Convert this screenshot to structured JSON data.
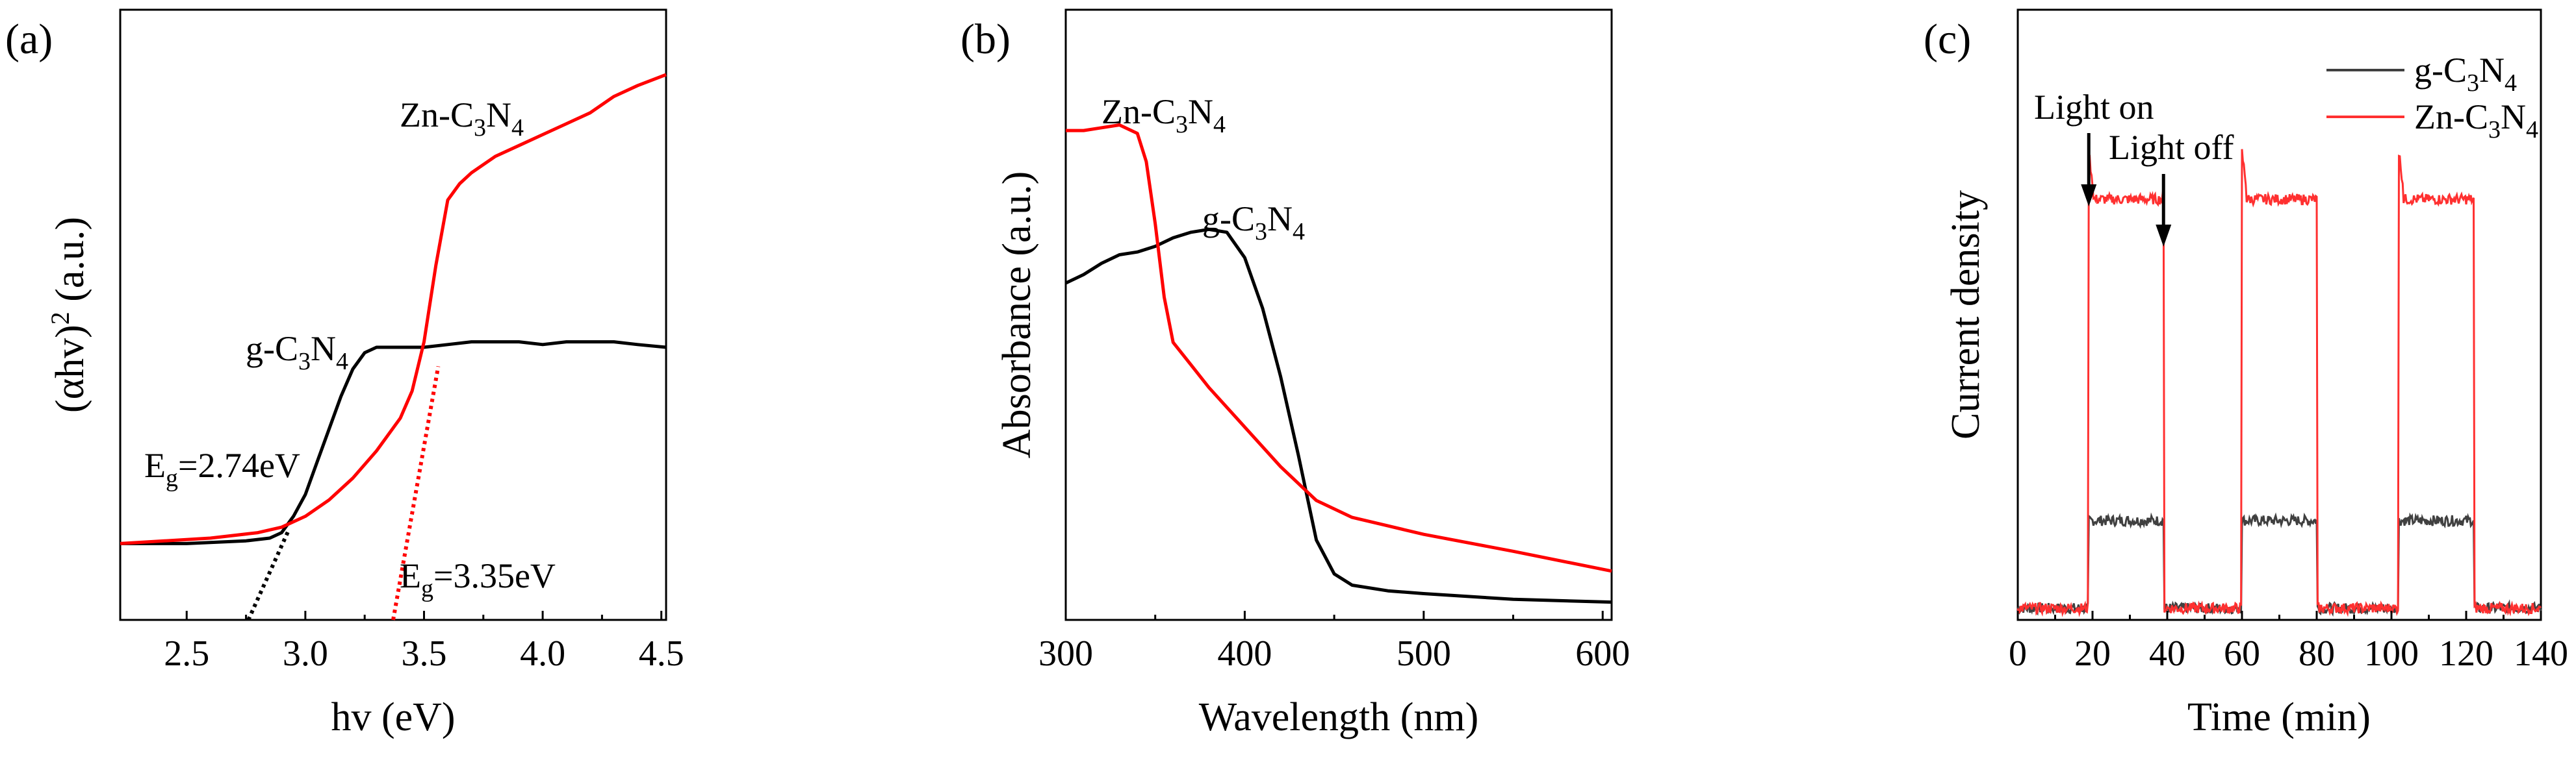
{
  "chart_data": [
    {
      "panel": "(a)",
      "type": "line",
      "xlabel": "hv (eV)",
      "ylabel": "(αhv)² (a.u.)",
      "ylabel_parts": {
        "base": "(αhv)",
        "sup": "2",
        "tail": " (a.u.)"
      },
      "xlim": [
        2.22,
        4.52
      ],
      "ylim": [
        0,
        1.0
      ],
      "xticks": [
        "2.5",
        "3.0",
        "3.5",
        "4.0",
        "4.5"
      ],
      "xtick_values": [
        2.5,
        3.0,
        3.5,
        4.0,
        4.5
      ],
      "series": [
        {
          "name": "g-C3N4",
          "color": "#000000",
          "x": [
            2.22,
            2.5,
            2.75,
            2.85,
            2.9,
            2.95,
            3.0,
            3.05,
            3.1,
            3.15,
            3.2,
            3.25,
            3.3,
            3.4,
            3.5,
            3.6,
            3.7,
            3.8,
            3.9,
            4.0,
            4.1,
            4.2,
            4.3,
            4.4,
            4.52
          ],
          "y": [
            0.14,
            0.14,
            0.145,
            0.15,
            0.16,
            0.19,
            0.23,
            0.29,
            0.35,
            0.41,
            0.46,
            0.49,
            0.5,
            0.5,
            0.5,
            0.505,
            0.51,
            0.51,
            0.51,
            0.505,
            0.51,
            0.51,
            0.51,
            0.505,
            0.5
          ]
        },
        {
          "name": "Zn-C3N4",
          "color": "#ff0000",
          "x": [
            2.22,
            2.6,
            2.8,
            2.9,
            3.0,
            3.1,
            3.2,
            3.3,
            3.4,
            3.45,
            3.5,
            3.55,
            3.6,
            3.65,
            3.7,
            3.8,
            3.9,
            4.0,
            4.1,
            4.2,
            4.3,
            4.4,
            4.52
          ],
          "y": [
            0.14,
            0.15,
            0.16,
            0.17,
            0.19,
            0.22,
            0.26,
            0.31,
            0.37,
            0.42,
            0.51,
            0.65,
            0.77,
            0.8,
            0.82,
            0.85,
            0.87,
            0.89,
            0.91,
            0.93,
            0.96,
            0.98,
            1.0
          ]
        }
      ],
      "fit_lines": [
        {
          "color": "#000000",
          "style": "dotted",
          "x": [
            2.76,
            2.93
          ],
          "y": [
            0,
            0.165
          ]
        },
        {
          "color": "#ff0000",
          "style": "dotted",
          "x": [
            3.37,
            3.56
          ],
          "y": [
            0,
            0.465
          ]
        }
      ],
      "annotations": {
        "zn": {
          "base": "Zn-C",
          "s1": "3",
          "mid": "N",
          "s2": "4"
        },
        "g": {
          "base": "g-C",
          "s1": "3",
          "mid": "N",
          "s2": "4"
        },
        "eg1": {
          "base": "E",
          "sub": "g",
          "tail": "=2.74eV"
        },
        "eg2": {
          "base": "E",
          "sub": "g",
          "tail": "=3.35eV"
        }
      }
    },
    {
      "panel": "(b)",
      "type": "line",
      "xlabel": "Wavelength (nm)",
      "ylabel": "Absorbance (a.u.)",
      "xlim": [
        300,
        605
      ],
      "ylim": [
        0,
        1.0
      ],
      "xticks": [
        "300",
        "400",
        "500",
        "600"
      ],
      "xtick_values": [
        300,
        400,
        500,
        600
      ],
      "series": [
        {
          "name": "g-C3N4",
          "color": "#000000",
          "x": [
            300,
            310,
            320,
            330,
            340,
            350,
            360,
            370,
            380,
            390,
            400,
            410,
            420,
            430,
            440,
            450,
            460,
            480,
            500,
            550,
            605
          ],
          "y": [
            0.585,
            0.6,
            0.62,
            0.635,
            0.64,
            0.65,
            0.665,
            0.675,
            0.68,
            0.675,
            0.63,
            0.54,
            0.42,
            0.28,
            0.13,
            0.07,
            0.05,
            0.04,
            0.035,
            0.025,
            0.02
          ]
        },
        {
          "name": "Zn-C3N4",
          "color": "#ff0000",
          "x": [
            300,
            310,
            320,
            330,
            340,
            345,
            350,
            355,
            360,
            370,
            380,
            400,
            420,
            440,
            460,
            480,
            500,
            550,
            605
          ],
          "y": [
            0.855,
            0.855,
            0.86,
            0.865,
            0.85,
            0.8,
            0.69,
            0.56,
            0.48,
            0.44,
            0.4,
            0.33,
            0.26,
            0.2,
            0.17,
            0.155,
            0.14,
            0.11,
            0.075
          ]
        }
      ],
      "annotations": {
        "zn": {
          "base": "Zn-C",
          "s1": "3",
          "mid": "N",
          "s2": "4"
        },
        "g": {
          "base": "g-C",
          "s1": "3",
          "mid": "N",
          "s2": "4"
        }
      }
    },
    {
      "panel": "(c)",
      "type": "line",
      "xlabel": "Time (min)",
      "ylabel": "Current density",
      "xlim": [
        0,
        140
      ],
      "ylim": [
        0,
        1.0
      ],
      "xticks": [
        "0",
        "20",
        "40",
        "60",
        "80",
        "100",
        "120",
        "140"
      ],
      "xtick_values": [
        0,
        20,
        40,
        60,
        80,
        100,
        120,
        140
      ],
      "legend_position": "top-right",
      "light_on_intervals": [
        [
          19,
          39
        ],
        [
          60,
          80
        ],
        [
          102,
          122
        ]
      ],
      "series": [
        {
          "name": "g-C3N4",
          "color": "#404040",
          "baseline": 0.02,
          "on_level": 0.17
        },
        {
          "name": "Zn-C3N4",
          "color": "#ff3030",
          "baseline": 0.02,
          "on_level": 0.72,
          "spike": 0.8
        }
      ],
      "legend": [
        {
          "base": "g-C",
          "s1": "3",
          "mid": "N",
          "s2": "4",
          "color": "#404040"
        },
        {
          "base": "Zn-C",
          "s1": "3",
          "mid": "N",
          "s2": "4",
          "color": "#ff3030"
        }
      ],
      "annotations": {
        "light_on": "Light on",
        "light_off": "Light off"
      }
    }
  ]
}
